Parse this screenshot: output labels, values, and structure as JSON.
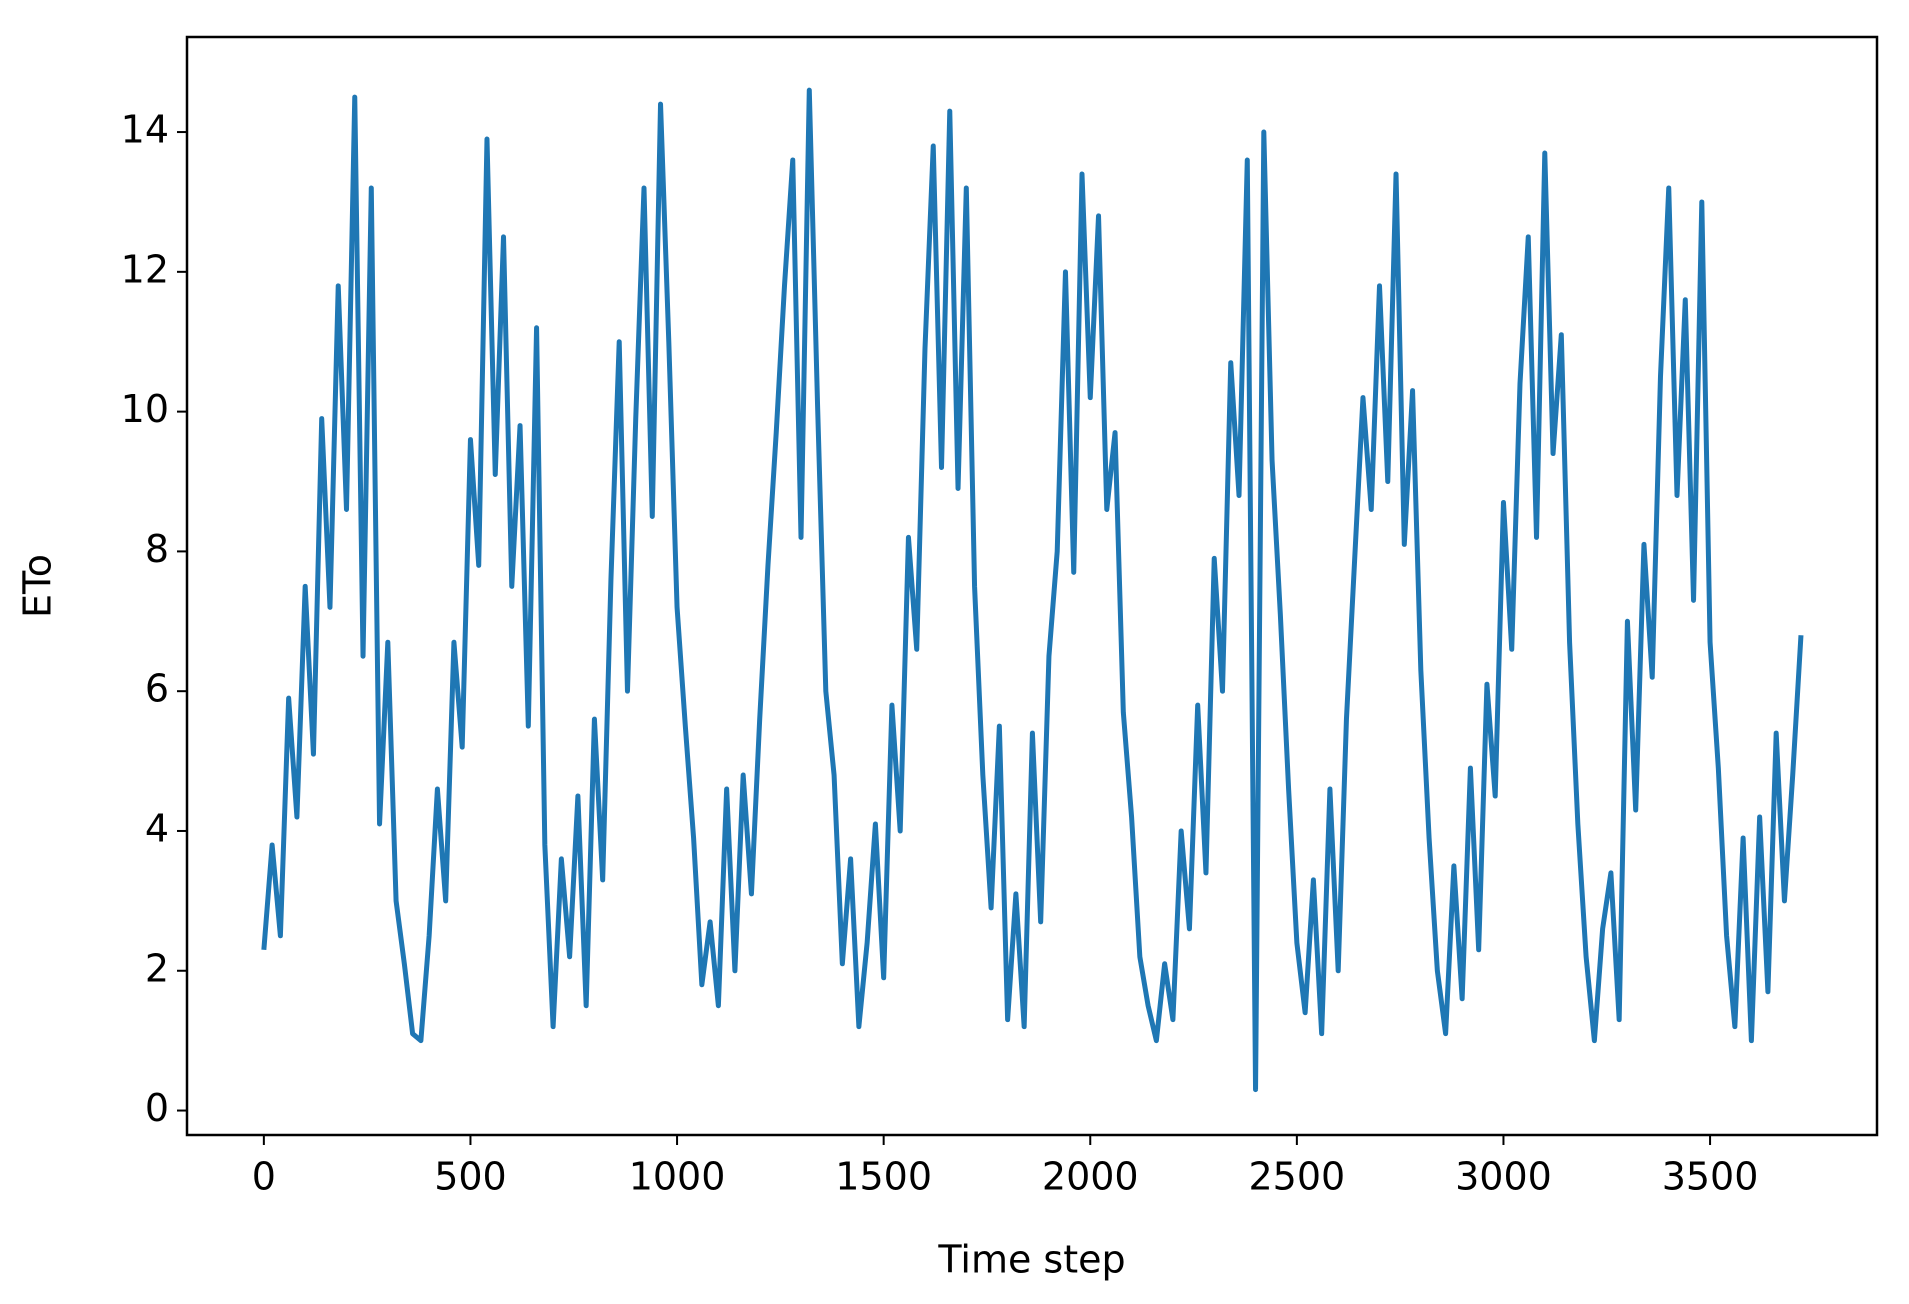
{
  "chart_data": {
    "type": "line",
    "xlabel": "Time step",
    "ylabel": "ETo",
    "x": [
      0,
      20,
      40,
      60,
      80,
      100,
      120,
      140,
      160,
      180,
      200,
      220,
      240,
      260,
      280,
      300,
      320,
      340,
      360,
      380,
      400,
      420,
      440,
      460,
      480,
      500,
      520,
      540,
      560,
      580,
      600,
      620,
      640,
      660,
      680,
      700,
      720,
      740,
      760,
      780,
      800,
      820,
      840,
      860,
      880,
      900,
      920,
      940,
      960,
      980,
      1000,
      1020,
      1040,
      1060,
      1080,
      1100,
      1120,
      1140,
      1160,
      1180,
      1200,
      1220,
      1240,
      1260,
      1280,
      1300,
      1320,
      1340,
      1360,
      1380,
      1400,
      1420,
      1440,
      1460,
      1480,
      1500,
      1520,
      1540,
      1560,
      1580,
      1600,
      1620,
      1640,
      1660,
      1680,
      1700,
      1720,
      1740,
      1760,
      1780,
      1800,
      1820,
      1840,
      1860,
      1880,
      1900,
      1920,
      1940,
      1960,
      1980,
      2000,
      2020,
      2040,
      2060,
      2080,
      2100,
      2120,
      2140,
      2160,
      2180,
      2200,
      2220,
      2240,
      2260,
      2280,
      2300,
      2320,
      2340,
      2360,
      2380,
      2400,
      2420,
      2440,
      2460,
      2480,
      2500,
      2520,
      2540,
      2560,
      2580,
      2600,
      2620,
      2640,
      2660,
      2680,
      2700,
      2720,
      2740,
      2760,
      2780,
      2800,
      2820,
      2840,
      2860,
      2880,
      2900,
      2920,
      2940,
      2960,
      2980,
      3000,
      3020,
      3040,
      3060,
      3080,
      3100,
      3120,
      3140,
      3160,
      3180,
      3200,
      3220,
      3240,
      3260,
      3280,
      3300,
      3320,
      3340,
      3360,
      3380,
      3400,
      3420,
      3440,
      3460,
      3480,
      3500,
      3520,
      3540,
      3560,
      3580,
      3600,
      3620,
      3640,
      3660,
      3680,
      3700,
      3720
    ],
    "series": [
      {
        "name": "ETo",
        "color": "#1f77b4",
        "values": [
          2.3,
          3.8,
          2.5,
          5.9,
          4.2,
          7.5,
          5.1,
          9.9,
          7.2,
          11.8,
          8.6,
          14.5,
          6.5,
          13.2,
          4.1,
          6.7,
          3.0,
          2.1,
          1.1,
          1.0,
          2.5,
          4.6,
          3.0,
          6.7,
          5.2,
          9.6,
          7.8,
          13.9,
          9.1,
          12.5,
          7.5,
          9.8,
          5.5,
          11.2,
          3.8,
          1.2,
          3.6,
          2.2,
          4.5,
          1.5,
          5.6,
          3.3,
          7.6,
          11.0,
          6.0,
          9.9,
          13.2,
          8.5,
          14.4,
          11.0,
          7.2,
          5.5,
          3.9,
          1.8,
          2.7,
          1.5,
          4.6,
          2.0,
          4.8,
          3.1,
          5.6,
          7.8,
          9.7,
          11.8,
          13.6,
          8.2,
          14.6,
          10.1,
          6.0,
          4.8,
          2.1,
          3.6,
          1.2,
          2.4,
          4.1,
          1.9,
          5.8,
          4.0,
          8.2,
          6.6,
          10.9,
          13.8,
          9.2,
          14.3,
          8.9,
          13.2,
          7.5,
          4.8,
          2.9,
          5.5,
          1.3,
          3.1,
          1.2,
          5.4,
          2.7,
          6.5,
          8.0,
          12.0,
          7.7,
          13.4,
          10.2,
          12.8,
          8.6,
          9.7,
          5.7,
          4.2,
          2.2,
          1.5,
          1.0,
          2.1,
          1.3,
          4.0,
          2.6,
          5.8,
          3.4,
          7.9,
          6.0,
          10.7,
          8.8,
          13.6,
          0.3,
          14.0,
          9.3,
          7.1,
          4.6,
          2.4,
          1.4,
          3.3,
          1.1,
          4.6,
          2.0,
          5.6,
          7.9,
          10.2,
          8.6,
          11.8,
          9.0,
          13.4,
          8.1,
          10.3,
          6.3,
          3.9,
          2.0,
          1.1,
          3.5,
          1.6,
          4.9,
          2.3,
          6.1,
          4.5,
          8.7,
          6.6,
          10.4,
          12.5,
          8.2,
          13.7,
          9.4,
          11.1,
          6.7,
          4.1,
          2.2,
          1.0,
          2.6,
          3.4,
          1.3,
          7.0,
          4.3,
          8.1,
          6.2,
          10.5,
          13.2,
          8.8,
          11.6,
          7.3,
          13.0,
          6.7,
          4.9,
          2.5,
          1.2,
          3.9,
          1.0,
          4.2,
          1.7,
          5.4,
          3.0,
          4.8,
          6.8
        ]
      }
    ],
    "xlim": [
      -186,
      3904
    ],
    "ylim": [
      -0.35,
      15.36
    ],
    "xticks": [
      0,
      500,
      1000,
      1500,
      2000,
      2500,
      3000,
      3500
    ],
    "yticks": [
      0,
      2,
      4,
      6,
      8,
      10,
      12,
      14
    ]
  }
}
